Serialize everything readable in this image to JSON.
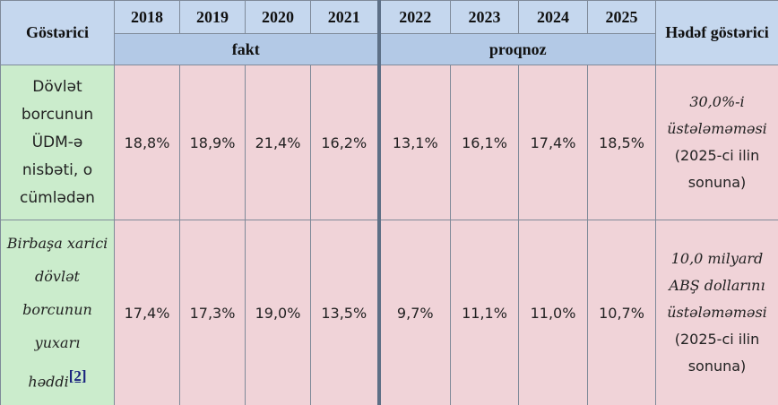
{
  "header": {
    "title": "Göstərici",
    "years": [
      "2018",
      "2019",
      "2020",
      "2021",
      "2022",
      "2023",
      "2024",
      "2025"
    ],
    "groups": [
      "fakt",
      "proqnoz"
    ],
    "target": "Hədəf göstərici"
  },
  "rows": [
    {
      "label": "Dövlət borcunun ÜDM-ə nisbəti, o cümlədən",
      "values": [
        "18,8%",
        "18,9%",
        "21,4%",
        "16,2%",
        "13,1%",
        "16,1%",
        "17,4%",
        "18,5%"
      ],
      "target": {
        "main": "30,0%-i üstələməməsi",
        "note": "(2025-ci ilin sonuna)"
      }
    },
    {
      "label": "Birbaşa xarici dövlət borcunun yuxarı həddi",
      "footnote": "[2]",
      "values": [
        "17,4%",
        "17,3%",
        "19,0%",
        "13,5%",
        "9,7%",
        "11,1%",
        "11,0%",
        "10,7%"
      ],
      "target": {
        "main": "10,0 milyard ABŞ dollarını üstələməməsi",
        "note": "(2025-ci ilin sonuna)"
      }
    }
  ]
}
